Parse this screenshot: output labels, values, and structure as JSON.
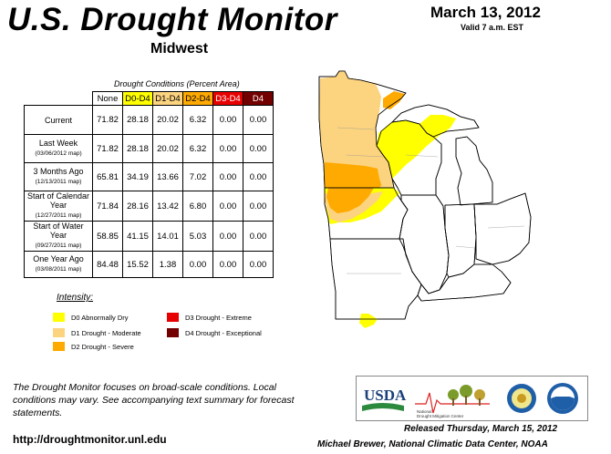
{
  "title": "U.S. Drought Monitor",
  "region": "Midwest",
  "date": "March 13, 2012",
  "valid": "Valid 7 a.m. EST",
  "table": {
    "caption": "Drought Conditions (Percent Area)",
    "columns": [
      "None",
      "D0-D4",
      "D1-D4",
      "D2-D4",
      "D3-D4",
      "D4"
    ],
    "column_colors": [
      "#ffffff",
      "#ffff00",
      "#fcd37f",
      "#ffaa00",
      "#e60000",
      "#730000"
    ],
    "rows": [
      {
        "label": "Current",
        "sub": "",
        "values": [
          "71.82",
          "28.18",
          "20.02",
          "6.32",
          "0.00",
          "0.00"
        ]
      },
      {
        "label": "Last Week",
        "sub": "(03/06/2012 map)",
        "values": [
          "71.82",
          "28.18",
          "20.02",
          "6.32",
          "0.00",
          "0.00"
        ]
      },
      {
        "label": "3 Months Ago",
        "sub": "(12/13/2011 map)",
        "values": [
          "65.81",
          "34.19",
          "13.66",
          "7.02",
          "0.00",
          "0.00"
        ]
      },
      {
        "label": "Start of Calendar Year",
        "sub": "(12/27/2011 map)",
        "values": [
          "71.84",
          "28.16",
          "13.42",
          "6.80",
          "0.00",
          "0.00"
        ]
      },
      {
        "label": "Start of Water Year",
        "sub": "(09/27/2011 map)",
        "values": [
          "58.85",
          "41.15",
          "14.01",
          "5.03",
          "0.00",
          "0.00"
        ]
      },
      {
        "label": "One Year Ago",
        "sub": "(03/08/2011 map)",
        "values": [
          "84.48",
          "15.52",
          "1.38",
          "0.00",
          "0.00",
          "0.00"
        ]
      }
    ]
  },
  "legend": {
    "title": "Intensity:",
    "items": [
      {
        "label": "D0 Abnormally Dry",
        "color": "#ffff00"
      },
      {
        "label": "D1 Drought - Moderate",
        "color": "#fcd37f"
      },
      {
        "label": "D2 Drought - Severe",
        "color": "#ffaa00"
      },
      {
        "label": "D3 Drought - Extreme",
        "color": "#e60000"
      },
      {
        "label": "D4 Drought - Exceptional",
        "color": "#730000"
      }
    ]
  },
  "disclaimer": "The Drought Monitor focuses on broad-scale conditions. Local conditions may vary. See accompanying text summary for forecast statements.",
  "url": "http://droughtmonitor.unl.edu",
  "released": "Released Thursday, March 15, 2012",
  "author": "Michael Brewer, National Climatic Data Center, NOAA",
  "logos": {
    "usda": "USDA",
    "ndmc_line1": "National",
    "ndmc_line2": "Drought Mitigation Center"
  }
}
